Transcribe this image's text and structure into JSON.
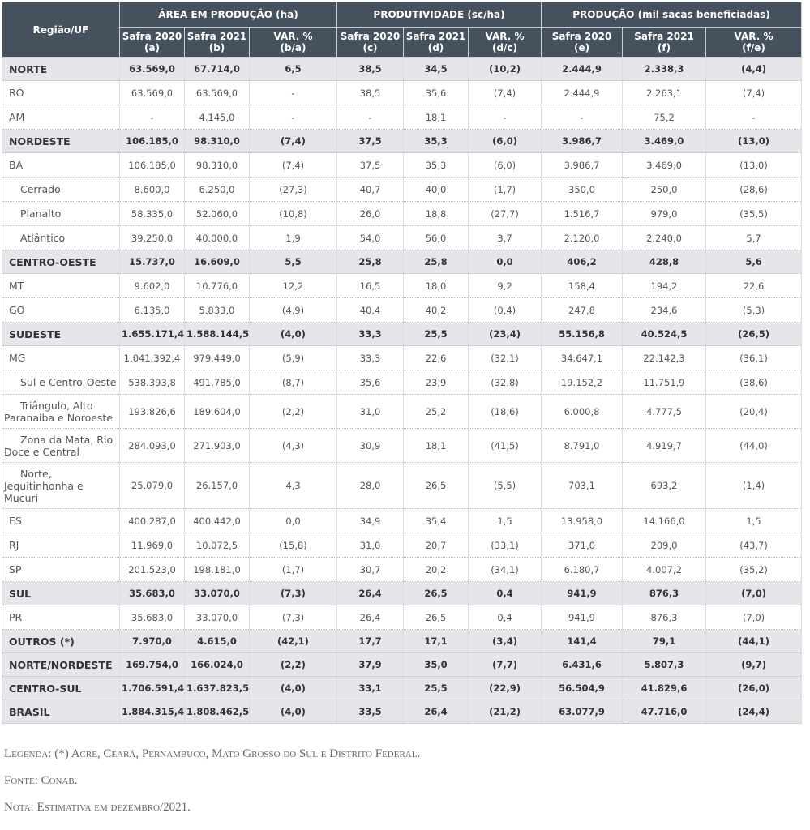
{
  "header": {
    "region": "Região/UF",
    "groups": [
      "ÁREA EM PRODUÇÃO (ha)",
      "PRODUTIVIDADE (sc/ha)",
      "PRODUÇÃO (mil sacas beneficiadas)"
    ],
    "subcols": [
      [
        "Safra 2020",
        "(a)"
      ],
      [
        "Safra 2021",
        "(b)"
      ],
      [
        "VAR. %",
        "(b/a)"
      ],
      [
        "Safra 2020",
        "(c)"
      ],
      [
        "Safra 2021",
        "(d)"
      ],
      [
        "VAR. %",
        "(d/c)"
      ],
      [
        "Safra 2020",
        "(e)"
      ],
      [
        "Safra 2021",
        "(f)"
      ],
      [
        "VAR. %",
        "(f/e)"
      ]
    ]
  },
  "rows": [
    {
      "label": "NORTE",
      "type": "total",
      "values": [
        "63.569,0",
        "67.714,0",
        "6,5",
        "38,5",
        "34,5",
        "(10,2)",
        "2.444,9",
        "2.338,3",
        "(4,4)"
      ]
    },
    {
      "label": "RO",
      "type": "uf",
      "values": [
        "63.569,0",
        "63.569,0",
        "-",
        "38,5",
        "35,6",
        "(7,4)",
        "2.444,9",
        "2.263,1",
        "(7,4)"
      ]
    },
    {
      "label": "AM",
      "type": "uf",
      "values": [
        "-",
        "4.145,0",
        "-",
        "-",
        "18,1",
        "-",
        "-",
        "75,2",
        "-"
      ]
    },
    {
      "label": "NORDESTE",
      "type": "total",
      "values": [
        "106.185,0",
        "98.310,0",
        "(7,4)",
        "37,5",
        "35,3",
        "(6,0)",
        "3.986,7",
        "3.469,0",
        "(13,0)"
      ]
    },
    {
      "label": "BA",
      "type": "uf",
      "values": [
        "106.185,0",
        "98.310,0",
        "(7,4)",
        "37,5",
        "35,3",
        "(6,0)",
        "3.986,7",
        "3.469,0",
        "(13,0)"
      ]
    },
    {
      "label": "Cerrado",
      "type": "sub",
      "values": [
        "8.600,0",
        "6.250,0",
        "(27,3)",
        "40,7",
        "40,0",
        "(1,7)",
        "350,0",
        "250,0",
        "(28,6)"
      ]
    },
    {
      "label": "Planalto",
      "type": "sub",
      "values": [
        "58.335,0",
        "52.060,0",
        "(10,8)",
        "26,0",
        "18,8",
        "(27,7)",
        "1.516,7",
        "979,0",
        "(35,5)"
      ]
    },
    {
      "label": "Atlântico",
      "type": "sub",
      "values": [
        "39.250,0",
        "40.000,0",
        "1,9",
        "54,0",
        "56,0",
        "3,7",
        "2.120,0",
        "2.240,0",
        "5,7"
      ]
    },
    {
      "label": "CENTRO-OESTE",
      "type": "total",
      "values": [
        "15.737,0",
        "16.609,0",
        "5,5",
        "25,8",
        "25,8",
        "0,0",
        "406,2",
        "428,8",
        "5,6"
      ]
    },
    {
      "label": "MT",
      "type": "uf",
      "values": [
        "9.602,0",
        "10.776,0",
        "12,2",
        "16,5",
        "18,0",
        "9,2",
        "158,4",
        "194,2",
        "22,6"
      ]
    },
    {
      "label": "GO",
      "type": "uf",
      "values": [
        "6.135,0",
        "5.833,0",
        "(4,9)",
        "40,4",
        "40,2",
        "(0,4)",
        "247,8",
        "234,6",
        "(5,3)"
      ]
    },
    {
      "label": "SUDESTE",
      "type": "total",
      "values": [
        "1.655.171,4",
        "1.588.144,5",
        "(4,0)",
        "33,3",
        "25,5",
        "(23,4)",
        "55.156,8",
        "40.524,5",
        "(26,5)"
      ]
    },
    {
      "label": "MG",
      "type": "uf",
      "values": [
        "1.041.392,4",
        "979.449,0",
        "(5,9)",
        "33,3",
        "22,6",
        "(32,1)",
        "34.647,1",
        "22.142,3",
        "(36,1)"
      ]
    },
    {
      "label": "Sul e Centro-Oeste",
      "type": "sub",
      "values": [
        "538.393,8",
        "491.785,0",
        "(8,7)",
        "35,6",
        "23,9",
        "(32,8)",
        "19.152,2",
        "11.751,9",
        "(38,6)"
      ]
    },
    {
      "label": "Triângulo, Alto Paranaiba e Noroeste",
      "type": "wrap",
      "values": [
        "193.826,6",
        "189.604,0",
        "(2,2)",
        "31,0",
        "25,2",
        "(18,6)",
        "6.000,8",
        "4.777,5",
        "(20,4)"
      ]
    },
    {
      "label": "Zona da Mata, Rio Doce e Central",
      "type": "wrap",
      "values": [
        "284.093,0",
        "271.903,0",
        "(4,3)",
        "30,9",
        "18,1",
        "(41,5)",
        "8.791,0",
        "4.919,7",
        "(44,0)"
      ]
    },
    {
      "label": "Norte, Jequitinhonha e Mucuri",
      "type": "wrap3",
      "values": [
        "25.079,0",
        "26.157,0",
        "4,3",
        "28,0",
        "26,5",
        "(5,5)",
        "703,1",
        "693,2",
        "(1,4)"
      ]
    },
    {
      "label": "ES",
      "type": "uf",
      "values": [
        "400.287,0",
        "400.442,0",
        "0,0",
        "34,9",
        "35,4",
        "1,5",
        "13.958,0",
        "14.166,0",
        "1,5"
      ]
    },
    {
      "label": "RJ",
      "type": "uf",
      "values": [
        "11.969,0",
        "10.072,5",
        "(15,8)",
        "31,0",
        "20,7",
        "(33,1)",
        "371,0",
        "209,0",
        "(43,7)"
      ]
    },
    {
      "label": "SP",
      "type": "uf",
      "values": [
        "201.523,0",
        "198.181,0",
        "(1,7)",
        "30,7",
        "20,2",
        "(34,1)",
        "6.180,7",
        "4.007,2",
        "(35,2)"
      ]
    },
    {
      "label": "SUL",
      "type": "total",
      "values": [
        "35.683,0",
        "33.070,0",
        "(7,3)",
        "26,4",
        "26,5",
        "0,4",
        "941,9",
        "876,3",
        "(7,0)"
      ]
    },
    {
      "label": "PR",
      "type": "uf",
      "values": [
        "35.683,0",
        "33.070,0",
        "(7,3)",
        "26,4",
        "26,5",
        "0,4",
        "941,9",
        "876,3",
        "(7,0)"
      ]
    },
    {
      "label": "OUTROS (*)",
      "type": "total",
      "values": [
        "7.970,0",
        "4.615,0",
        "(42,1)",
        "17,7",
        "17,1",
        "(3,4)",
        "141,4",
        "79,1",
        "(44,1)"
      ]
    },
    {
      "label": "NORTE/NORDESTE",
      "type": "total",
      "values": [
        "169.754,0",
        "166.024,0",
        "(2,2)",
        "37,9",
        "35,0",
        "(7,7)",
        "6.431,6",
        "5.807,3",
        "(9,7)"
      ]
    },
    {
      "label": "CENTRO-SUL",
      "type": "total",
      "values": [
        "1.706.591,4",
        "1.637.823,5",
        "(4,0)",
        "33,1",
        "25,5",
        "(22,9)",
        "56.504,9",
        "41.829,6",
        "(26,0)"
      ]
    },
    {
      "label": "BRASIL",
      "type": "total",
      "values": [
        "1.884.315,4",
        "1.808.462,5",
        "(4,0)",
        "33,5",
        "26,4",
        "(21,2)",
        "63.077,9",
        "47.716,0",
        "(24,4)"
      ]
    }
  ],
  "notes": {
    "legenda": "Legenda: (*) Acre, Ceará, Pernambuco, Mato Grosso do Sul e Distrito Federal.",
    "fonte": "Fonte: Conab.",
    "nota": "Nota: Estimativa em dezembro/2021."
  },
  "colors": {
    "header_bg": "#46515e",
    "total_row_bg": "#e5e6ea"
  }
}
